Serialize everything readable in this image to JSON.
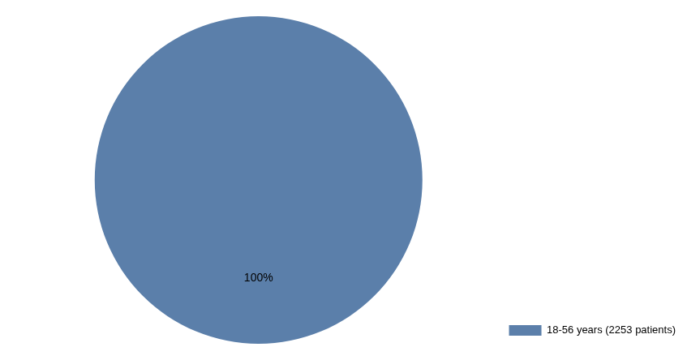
{
  "chart_data": {
    "type": "pie",
    "categories": [
      "18-56 years (2253 patients)"
    ],
    "values": [
      100
    ],
    "value_labels": [
      "100%"
    ],
    "colors": [
      "#5b7faa"
    ],
    "data_labels": true,
    "legend": "lower right"
  }
}
